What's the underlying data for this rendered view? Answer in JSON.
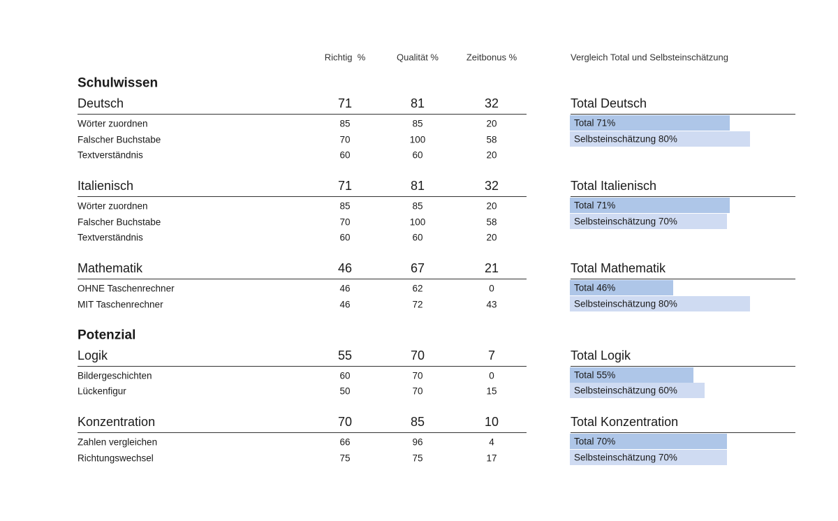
{
  "header": {
    "columns": [
      "Richtig  %",
      "Qualität %",
      "Zeitbonus %"
    ],
    "comparison_title": "Vergleich Total und Selbsteinschätzung"
  },
  "xlim": [
    0,
    100
  ],
  "sections": [
    {
      "title": "Schulwissen",
      "groups": [
        {
          "name": "Deutsch",
          "values": [
            71,
            81,
            32
          ],
          "rows": [
            {
              "name": "Wörter zuordnen",
              "values": [
                85,
                85,
                20
              ]
            },
            {
              "name": "Falscher Buchstabe",
              "values": [
                70,
                100,
                58
              ]
            },
            {
              "name": "Textverständnis",
              "values": [
                60,
                60,
                20
              ]
            }
          ],
          "comparison": {
            "title": "Total Deutsch",
            "bars": [
              {
                "label": "Total 71%",
                "value": 71
              },
              {
                "label": "Selbsteinschätzung 80%",
                "value": 80
              }
            ]
          }
        },
        {
          "name": "Italienisch",
          "values": [
            71,
            81,
            32
          ],
          "rows": [
            {
              "name": "Wörter zuordnen",
              "values": [
                85,
                85,
                20
              ]
            },
            {
              "name": "Falscher Buchstabe",
              "values": [
                70,
                100,
                58
              ]
            },
            {
              "name": "Textverständnis",
              "values": [
                60,
                60,
                20
              ]
            }
          ],
          "comparison": {
            "title": "Total Italienisch",
            "bars": [
              {
                "label": "Total 71%",
                "value": 71
              },
              {
                "label": "Selbsteinschätzung 70%",
                "value": 70
              }
            ]
          }
        },
        {
          "name": "Mathematik",
          "values": [
            46,
            67,
            21
          ],
          "rows": [
            {
              "name": "OHNE Taschenrechner",
              "values": [
                46,
                62,
                0
              ]
            },
            {
              "name": "MIT Taschenrechner",
              "values": [
                46,
                72,
                43
              ]
            }
          ],
          "comparison": {
            "title": "Total Mathematik",
            "bars": [
              {
                "label": "Total 46%",
                "value": 46
              },
              {
                "label": "Selbsteinschätzung 80%",
                "value": 80
              }
            ]
          }
        }
      ]
    },
    {
      "title": "Potenzial",
      "groups": [
        {
          "name": "Logik",
          "values": [
            55,
            70,
            7
          ],
          "rows": [
            {
              "name": "Bildergeschichten",
              "values": [
                60,
                70,
                0
              ]
            },
            {
              "name": "Lückenfigur",
              "values": [
                50,
                70,
                15
              ]
            }
          ],
          "comparison": {
            "title": "Total Logik",
            "bars": [
              {
                "label": "Total 55%",
                "value": 55
              },
              {
                "label": "Selbsteinschätzung 60%",
                "value": 60
              }
            ]
          }
        },
        {
          "name": "Konzentration",
          "values": [
            70,
            85,
            10
          ],
          "rows": [
            {
              "name": "Zahlen vergleichen",
              "values": [
                66,
                96,
                4
              ]
            },
            {
              "name": "Richtungswechsel",
              "values": [
                75,
                75,
                17
              ]
            }
          ],
          "comparison": {
            "title": "Total Konzentration",
            "bars": [
              {
                "label": "Total 70%",
                "value": 70
              },
              {
                "label": "Selbsteinschätzung 70%",
                "value": 70
              }
            ]
          }
        }
      ]
    }
  ]
}
